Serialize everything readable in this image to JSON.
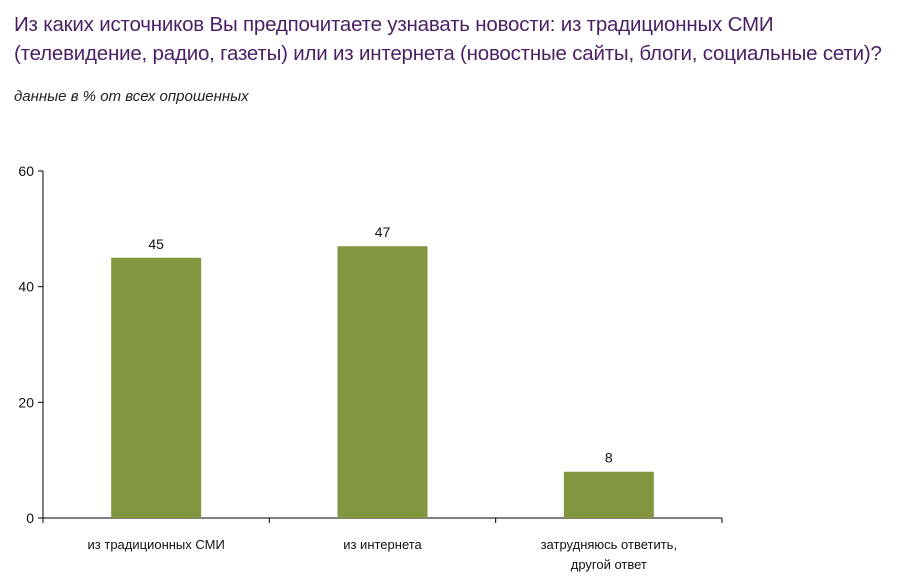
{
  "title": "Из каких источников Вы предпочитаете узнавать новости: из традиционных СМИ (телевидение, радио, газеты) или из интернета (новостные сайты, блоги, социальные сети)?",
  "subtitle": "данные в % от всех опрошенных",
  "colors": {
    "title": "#4b1f63",
    "bar": "#82963f",
    "axis": "#000000"
  },
  "chart_data": {
    "type": "bar",
    "categories": [
      [
        "из традиционных СМИ"
      ],
      [
        "из интернета"
      ],
      [
        "затрудняюсь ответить,",
        "другой ответ"
      ]
    ],
    "values": [
      45,
      47,
      8
    ],
    "ylim": [
      0,
      60
    ],
    "yticks": [
      0,
      20,
      40,
      60
    ],
    "grid": false,
    "legend": false
  }
}
